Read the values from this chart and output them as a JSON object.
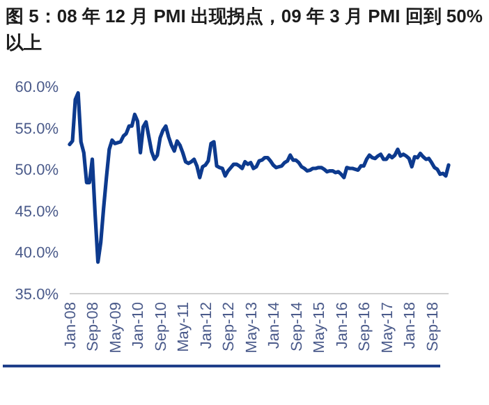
{
  "chart_data": {
    "type": "line",
    "title": "图 5：08 年 12 月 PMI 出现拐点，09 年 3 月 PMI 回到 50%以上",
    "x": [
      "2008-01",
      "2008-02",
      "2008-03",
      "2008-04",
      "2008-05",
      "2008-06",
      "2008-07",
      "2008-08",
      "2008-09",
      "2008-10",
      "2008-11",
      "2008-12",
      "2009-01",
      "2009-02",
      "2009-03",
      "2009-04",
      "2009-05",
      "2009-06",
      "2009-07",
      "2009-08",
      "2009-09",
      "2009-10",
      "2009-11",
      "2009-12",
      "2010-01",
      "2010-02",
      "2010-03",
      "2010-04",
      "2010-05",
      "2010-06",
      "2010-07",
      "2010-08",
      "2010-09",
      "2010-10",
      "2010-11",
      "2010-12",
      "2011-01",
      "2011-02",
      "2011-03",
      "2011-04",
      "2011-05",
      "2011-06",
      "2011-07",
      "2011-08",
      "2011-09",
      "2011-10",
      "2011-11",
      "2011-12",
      "2012-01",
      "2012-02",
      "2012-03",
      "2012-04",
      "2012-05",
      "2012-06",
      "2012-07",
      "2012-08",
      "2012-09",
      "2012-10",
      "2012-11",
      "2012-12",
      "2013-01",
      "2013-02",
      "2013-03",
      "2013-04",
      "2013-05",
      "2013-06",
      "2013-07",
      "2013-08",
      "2013-09",
      "2013-10",
      "2013-11",
      "2013-12",
      "2014-01",
      "2014-02",
      "2014-03",
      "2014-04",
      "2014-05",
      "2014-06",
      "2014-07",
      "2014-08",
      "2014-09",
      "2014-10",
      "2014-11",
      "2014-12",
      "2015-01",
      "2015-02",
      "2015-03",
      "2015-04",
      "2015-05",
      "2015-06",
      "2015-07",
      "2015-08",
      "2015-09",
      "2015-10",
      "2015-11",
      "2015-12",
      "2016-01",
      "2016-02",
      "2016-03",
      "2016-04",
      "2016-05",
      "2016-06",
      "2016-07",
      "2016-08",
      "2016-09",
      "2016-10",
      "2016-11",
      "2016-12",
      "2017-01",
      "2017-02",
      "2017-03",
      "2017-04",
      "2017-05",
      "2017-06",
      "2017-07",
      "2017-08",
      "2017-09",
      "2017-10",
      "2017-11",
      "2017-12",
      "2018-01",
      "2018-02",
      "2018-03",
      "2018-04",
      "2018-05",
      "2018-06",
      "2018-07",
      "2018-08",
      "2018-09",
      "2018-10",
      "2018-11",
      "2018-12",
      "2019-01",
      "2019-02",
      "2019-03"
    ],
    "series": [
      {
        "color": "#0d3a8e",
        "values": [
          53.0,
          53.4,
          58.4,
          59.2,
          53.3,
          52.0,
          48.4,
          48.4,
          51.2,
          44.6,
          38.8,
          41.2,
          45.3,
          49.0,
          52.4,
          53.5,
          53.1,
          53.2,
          53.3,
          54.0,
          54.3,
          55.2,
          55.2,
          56.6,
          55.8,
          52.0,
          55.1,
          55.7,
          53.9,
          52.1,
          51.2,
          51.7,
          53.8,
          54.7,
          55.2,
          53.9,
          52.9,
          52.2,
          53.4,
          52.9,
          52.0,
          50.9,
          50.7,
          50.9,
          51.2,
          50.4,
          49.0,
          50.3,
          50.5,
          51.0,
          53.1,
          53.3,
          50.4,
          50.2,
          50.1,
          49.2,
          49.8,
          50.2,
          50.6,
          50.6,
          50.4,
          50.1,
          50.9,
          50.6,
          50.8,
          50.1,
          50.3,
          51.0,
          51.1,
          51.4,
          51.4,
          51.0,
          50.5,
          50.2,
          50.3,
          50.4,
          50.8,
          51.0,
          51.7,
          51.1,
          51.1,
          50.8,
          50.3,
          50.1,
          49.8,
          49.9,
          50.1,
          50.1,
          50.2,
          50.2,
          50.0,
          49.7,
          49.8,
          49.8,
          49.6,
          49.7,
          49.4,
          49.0,
          50.2,
          50.1,
          50.1,
          50.0,
          49.9,
          50.4,
          50.4,
          51.2,
          51.7,
          51.4,
          51.3,
          51.6,
          51.8,
          51.2,
          51.2,
          51.7,
          51.4,
          51.7,
          52.4,
          51.6,
          51.8,
          51.6,
          51.3,
          50.3,
          51.5,
          51.4,
          51.9,
          51.5,
          51.2,
          51.3,
          50.8,
          50.2,
          50.0,
          49.4,
          49.5,
          49.2,
          50.5
        ]
      }
    ],
    "xlim": [
      "2008-01",
      "2019-03"
    ],
    "xticks": [
      {
        "value": "2008-01",
        "label": "Jan-08"
      },
      {
        "value": "2008-09",
        "label": "Sep-08"
      },
      {
        "value": "2009-05",
        "label": "May-09"
      },
      {
        "value": "2010-01",
        "label": "Jan-10"
      },
      {
        "value": "2010-09",
        "label": "Sep-10"
      },
      {
        "value": "2011-05",
        "label": "May-11"
      },
      {
        "value": "2012-01",
        "label": "Jan-12"
      },
      {
        "value": "2012-09",
        "label": "Sep-12"
      },
      {
        "value": "2013-05",
        "label": "May-13"
      },
      {
        "value": "2014-01",
        "label": "Jan-14"
      },
      {
        "value": "2014-09",
        "label": "Sep-14"
      },
      {
        "value": "2015-05",
        "label": "May-15"
      },
      {
        "value": "2016-01",
        "label": "Jan-16"
      },
      {
        "value": "2016-09",
        "label": "Sep-16"
      },
      {
        "value": "2017-05",
        "label": "May-17"
      },
      {
        "value": "2018-01",
        "label": "Jan-18"
      },
      {
        "value": "2018-09",
        "label": "Sep-18"
      }
    ],
    "ylim": [
      35,
      60
    ],
    "yticks": [
      {
        "value": 35,
        "label": "35.0%"
      },
      {
        "value": 40,
        "label": "40.0%"
      },
      {
        "value": 45,
        "label": "45.0%"
      },
      {
        "value": 50,
        "label": "50.0%"
      },
      {
        "value": 55,
        "label": "55.0%"
      },
      {
        "value": 60,
        "label": "60.0%"
      }
    ],
    "grid": false,
    "marker": "none",
    "line_style": "solid"
  }
}
